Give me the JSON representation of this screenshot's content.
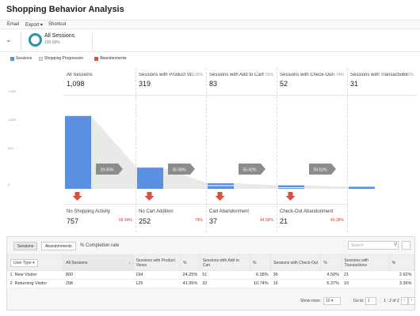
{
  "title": "Shopping Behavior Analysis",
  "toolbar": {
    "email": "Email",
    "export": "Export",
    "export_arrow": "▾",
    "shortcut": "Shortcut"
  },
  "segment": {
    "name": "All Sessions",
    "pct": "100.00%",
    "chevron": "⌄"
  },
  "legend": [
    {
      "label": "Sessions",
      "color": "#5b8fe0"
    },
    {
      "label": "Shopping Progression",
      "color": "#e0e0e0"
    },
    {
      "label": "Abandonments",
      "color": "#d85040"
    }
  ],
  "funnel": {
    "stages": [
      {
        "label": "All Sessions",
        "value": "1,098",
        "pct": ""
      },
      {
        "label": "Sessions with Product Vi...",
        "value": "319",
        "pct": "29.05%"
      },
      {
        "label": "Sessions with Add to Cart",
        "value": "83",
        "pct": "7.56%"
      },
      {
        "label": "Sessions with Check-Out",
        "value": "52",
        "pct": "4.74%"
      },
      {
        "label": "Sessions with Transactions",
        "value": "31",
        "pct": "2.82%"
      }
    ],
    "progressions": [
      "29.05%",
      "35.08%",
      "55.42%",
      "59.62%"
    ],
    "abandonments": [
      {
        "label": "No Shopping Activity",
        "value": "757",
        "pct": "68.94%"
      },
      {
        "label": "No Cart Addition",
        "value": "252",
        "pct": "79%"
      },
      {
        "label": "Cart Abandonment",
        "value": "37",
        "pct": "44.58%"
      },
      {
        "label": "Check-Out Abandonment",
        "value": "21",
        "pct": "40.38%"
      }
    ],
    "y_ticks": [
      "1,500",
      "1,000",
      "500",
      "0"
    ]
  },
  "chart_data": {
    "type": "bar",
    "categories": [
      "All Sessions",
      "Sessions with Product Views",
      "Sessions with Add to Cart",
      "Sessions with Check-Out",
      "Sessions with Transactions"
    ],
    "values": [
      1098,
      319,
      83,
      52,
      31
    ],
    "ylim": [
      0,
      1500
    ],
    "xlabel": "",
    "ylabel": ""
  },
  "table_panel": {
    "tabs": [
      "Sessions",
      "Abandonments"
    ],
    "completion_label": "% Completion rate",
    "search_placeholder": "Search",
    "columns": {
      "user_type": "User Type",
      "all_sessions": "All Sessions",
      "product_views": "Sessions with Product Views",
      "add_to_cart": "Sessions with Add to Cart",
      "check_out": "Sessions with Check-Out",
      "transactions": "Sessions with Transactions",
      "pct": "%"
    },
    "rows": [
      {
        "idx": "1",
        "type": "New Visitor",
        "all": "800",
        "pv": "194",
        "pv_pct": "24.25%",
        "atc": "51",
        "atc_pct": "6.38%",
        "co": "36",
        "co_pct": "4.50%",
        "tx": "21",
        "tx_pct": "2.62%"
      },
      {
        "idx": "2",
        "type": "Returning Visitor",
        "all": "298",
        "pv": "125",
        "pv_pct": "41.95%",
        "atc": "32",
        "atc_pct": "10.74%",
        "co": "16",
        "co_pct": "5.37%",
        "tx": "10",
        "tx_pct": "3.36%"
      }
    ],
    "pager": {
      "show_rows_label": "Show rows:",
      "rows_value": "10",
      "goto_label": "Go to:",
      "goto_value": "1",
      "range": "1 - 2 of 2"
    }
  }
}
